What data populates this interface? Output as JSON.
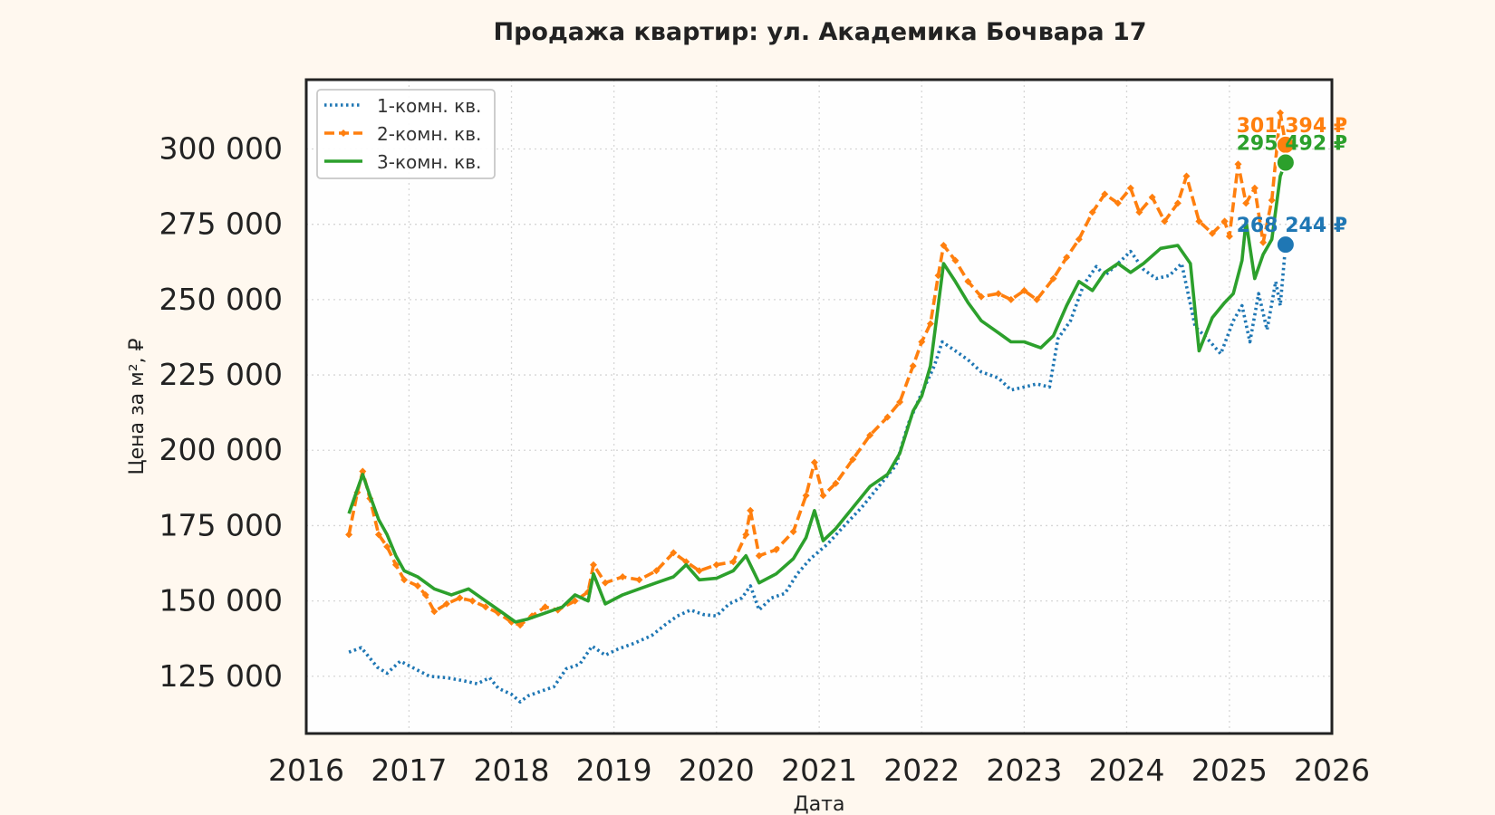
{
  "chart_data": {
    "type": "line",
    "title": "Продажа квартир: ул. Академика Бочвара 17",
    "xlabel": "Дата",
    "ylabel": "Цена за м², ₽",
    "xlim": [
      "2016-01-01",
      "2026-01-01"
    ],
    "ylim": [
      106000,
      323000
    ],
    "x_ticks": [
      "2016",
      "2017",
      "2018",
      "2019",
      "2020",
      "2021",
      "2022",
      "2023",
      "2024",
      "2025",
      "2026"
    ],
    "y_ticks": [
      125000,
      150000,
      175000,
      200000,
      225000,
      250000,
      275000,
      300000
    ],
    "y_tick_labels": [
      "125 000",
      "150 000",
      "175 000",
      "200 000",
      "225 000",
      "250 000",
      "275 000",
      "300 000"
    ],
    "grid": true,
    "legend_position": "top-left",
    "series": [
      {
        "name": "1-комн. кв.",
        "color": "#1f77b4",
        "style": "dotted",
        "last_value": 268244,
        "last_label": "268 244 ₽",
        "points": [
          [
            "2016-06-01",
            133000
          ],
          [
            "2016-07-15",
            134500
          ],
          [
            "2016-08-15",
            131000
          ],
          [
            "2016-09-10",
            128000
          ],
          [
            "2016-10-15",
            126000
          ],
          [
            "2016-12-01",
            130000
          ],
          [
            "2017-02-01",
            127000
          ],
          [
            "2017-03-15",
            125000
          ],
          [
            "2017-05-15",
            124500
          ],
          [
            "2017-07-15",
            123500
          ],
          [
            "2017-09-01",
            122500
          ],
          [
            "2017-10-15",
            124500
          ],
          [
            "2017-11-15",
            121000
          ],
          [
            "2018-01-01",
            119000
          ],
          [
            "2018-02-01",
            116500
          ],
          [
            "2018-03-01",
            118500
          ],
          [
            "2018-04-15",
            120000
          ],
          [
            "2018-06-01",
            121500
          ],
          [
            "2018-07-15",
            127500
          ],
          [
            "2018-09-01",
            129000
          ],
          [
            "2018-10-15",
            135000
          ],
          [
            "2018-12-01",
            132000
          ],
          [
            "2019-01-15",
            134000
          ],
          [
            "2019-03-15",
            136000
          ],
          [
            "2019-05-15",
            138500
          ],
          [
            "2019-07-01",
            142000
          ],
          [
            "2019-08-15",
            145000
          ],
          [
            "2019-10-01",
            147000
          ],
          [
            "2019-11-15",
            145500
          ],
          [
            "2020-01-01",
            145000
          ],
          [
            "2020-02-15",
            149000
          ],
          [
            "2020-04-01",
            151000
          ],
          [
            "2020-05-01",
            155000
          ],
          [
            "2020-06-01",
            147000
          ],
          [
            "2020-07-15",
            151000
          ],
          [
            "2020-09-01",
            152500
          ],
          [
            "2020-10-15",
            159000
          ],
          [
            "2020-12-01",
            164000
          ],
          [
            "2021-02-01",
            169000
          ],
          [
            "2021-04-01",
            175000
          ],
          [
            "2021-06-01",
            181000
          ],
          [
            "2021-08-01",
            188000
          ],
          [
            "2021-10-01",
            195000
          ],
          [
            "2021-11-15",
            209000
          ],
          [
            "2022-01-01",
            219000
          ],
          [
            "2022-02-15",
            228000
          ],
          [
            "2022-03-15",
            236000
          ],
          [
            "2022-05-01",
            233000
          ],
          [
            "2022-06-15",
            230000
          ],
          [
            "2022-08-01",
            226000
          ],
          [
            "2022-10-01",
            224000
          ],
          [
            "2022-11-15",
            220000
          ],
          [
            "2023-01-01",
            221000
          ],
          [
            "2023-02-15",
            222000
          ],
          [
            "2023-04-01",
            221000
          ],
          [
            "2023-05-01",
            237000
          ],
          [
            "2023-06-15",
            243000
          ],
          [
            "2023-08-01",
            255000
          ],
          [
            "2023-09-15",
            261000
          ],
          [
            "2023-10-15",
            258000
          ],
          [
            "2023-12-01",
            262000
          ],
          [
            "2024-01-15",
            266000
          ],
          [
            "2024-03-01",
            260000
          ],
          [
            "2024-04-15",
            257000
          ],
          [
            "2024-06-01",
            258000
          ],
          [
            "2024-07-15",
            262000
          ],
          [
            "2024-09-01",
            241000
          ],
          [
            "2024-10-15",
            237000
          ],
          [
            "2024-12-01",
            232000
          ],
          [
            "2025-01-15",
            243000
          ],
          [
            "2025-02-15",
            248000
          ],
          [
            "2025-03-15",
            236000
          ],
          [
            "2025-04-15",
            252000
          ],
          [
            "2025-05-15",
            240000
          ],
          [
            "2025-06-15",
            256000
          ],
          [
            "2025-07-01",
            248000
          ],
          [
            "2025-07-20",
            268244
          ]
        ]
      },
      {
        "name": "2-комн. кв.",
        "color": "#ff7f0e",
        "style": "dashed",
        "last_value": 301394,
        "last_label": "301 394 ₽",
        "points": [
          [
            "2016-06-01",
            172000
          ],
          [
            "2016-07-01",
            186000
          ],
          [
            "2016-07-20",
            193000
          ],
          [
            "2016-08-15",
            184000
          ],
          [
            "2016-09-15",
            172000
          ],
          [
            "2016-10-15",
            168000
          ],
          [
            "2016-11-15",
            162000
          ],
          [
            "2016-12-15",
            157000
          ],
          [
            "2017-02-01",
            155000
          ],
          [
            "2017-03-01",
            152000
          ],
          [
            "2017-04-01",
            146500
          ],
          [
            "2017-05-15",
            149000
          ],
          [
            "2017-07-01",
            151000
          ],
          [
            "2017-08-15",
            150000
          ],
          [
            "2017-10-01",
            148000
          ],
          [
            "2017-11-15",
            146000
          ],
          [
            "2018-01-01",
            143000
          ],
          [
            "2018-02-01",
            142000
          ],
          [
            "2018-03-15",
            145000
          ],
          [
            "2018-05-01",
            148000
          ],
          [
            "2018-06-15",
            147000
          ],
          [
            "2018-08-15",
            150000
          ],
          [
            "2018-10-01",
            153000
          ],
          [
            "2018-10-20",
            162000
          ],
          [
            "2018-12-01",
            156000
          ],
          [
            "2019-02-01",
            158000
          ],
          [
            "2019-04-01",
            157000
          ],
          [
            "2019-06-01",
            160000
          ],
          [
            "2019-08-01",
            166000
          ],
          [
            "2019-09-15",
            163000
          ],
          [
            "2019-11-01",
            160000
          ],
          [
            "2020-01-01",
            162000
          ],
          [
            "2020-03-01",
            163000
          ],
          [
            "2020-04-15",
            172000
          ],
          [
            "2020-05-01",
            180000
          ],
          [
            "2020-06-01",
            165000
          ],
          [
            "2020-08-01",
            167000
          ],
          [
            "2020-10-01",
            173000
          ],
          [
            "2020-11-15",
            185000
          ],
          [
            "2020-12-15",
            196000
          ],
          [
            "2021-01-15",
            185000
          ],
          [
            "2021-03-01",
            189000
          ],
          [
            "2021-05-01",
            197000
          ],
          [
            "2021-07-01",
            205000
          ],
          [
            "2021-09-01",
            211000
          ],
          [
            "2021-10-15",
            216000
          ],
          [
            "2021-12-01",
            228000
          ],
          [
            "2022-01-01",
            236000
          ],
          [
            "2022-02-01",
            242000
          ],
          [
            "2022-03-01",
            258000
          ],
          [
            "2022-03-20",
            268000
          ],
          [
            "2022-05-01",
            263000
          ],
          [
            "2022-06-15",
            256000
          ],
          [
            "2022-08-01",
            251000
          ],
          [
            "2022-10-01",
            252000
          ],
          [
            "2022-11-15",
            250000
          ],
          [
            "2023-01-01",
            253000
          ],
          [
            "2023-02-15",
            250000
          ],
          [
            "2023-04-15",
            257000
          ],
          [
            "2023-06-01",
            264000
          ],
          [
            "2023-07-15",
            270000
          ],
          [
            "2023-09-01",
            279000
          ],
          [
            "2023-10-15",
            285000
          ],
          [
            "2023-12-01",
            282000
          ],
          [
            "2024-01-15",
            287000
          ],
          [
            "2024-02-15",
            279000
          ],
          [
            "2024-04-01",
            284000
          ],
          [
            "2024-05-15",
            276000
          ],
          [
            "2024-07-01",
            282000
          ],
          [
            "2024-08-01",
            291000
          ],
          [
            "2024-09-15",
            276000
          ],
          [
            "2024-11-01",
            272000
          ],
          [
            "2024-12-15",
            276000
          ],
          [
            "2025-01-01",
            271000
          ],
          [
            "2025-02-01",
            295000
          ],
          [
            "2025-03-01",
            282000
          ],
          [
            "2025-04-01",
            287000
          ],
          [
            "2025-05-01",
            269000
          ],
          [
            "2025-06-01",
            283000
          ],
          [
            "2025-07-01",
            312000
          ],
          [
            "2025-07-20",
            301394
          ]
        ]
      },
      {
        "name": "3-комн. кв.",
        "color": "#2ca02c",
        "style": "solid",
        "last_value": 295492,
        "last_label": "295 492 ₽",
        "points": [
          [
            "2016-06-01",
            179000
          ],
          [
            "2016-07-01",
            187000
          ],
          [
            "2016-07-20",
            192000
          ],
          [
            "2016-08-15",
            185000
          ],
          [
            "2016-09-15",
            177000
          ],
          [
            "2016-10-15",
            172000
          ],
          [
            "2016-11-15",
            165000
          ],
          [
            "2016-12-15",
            160000
          ],
          [
            "2017-02-01",
            158000
          ],
          [
            "2017-04-01",
            154000
          ],
          [
            "2017-06-01",
            152000
          ],
          [
            "2017-08-01",
            154000
          ],
          [
            "2017-10-01",
            150000
          ],
          [
            "2017-12-01",
            146000
          ],
          [
            "2018-01-15",
            143000
          ],
          [
            "2018-03-01",
            144000
          ],
          [
            "2018-05-01",
            146000
          ],
          [
            "2018-07-01",
            148000
          ],
          [
            "2018-08-15",
            152000
          ],
          [
            "2018-10-01",
            150000
          ],
          [
            "2018-10-20",
            159000
          ],
          [
            "2018-12-01",
            149000
          ],
          [
            "2019-02-01",
            152000
          ],
          [
            "2019-04-01",
            154000
          ],
          [
            "2019-06-01",
            156000
          ],
          [
            "2019-08-01",
            158000
          ],
          [
            "2019-09-15",
            162000
          ],
          [
            "2019-11-01",
            157000
          ],
          [
            "2020-01-01",
            157500
          ],
          [
            "2020-03-01",
            160000
          ],
          [
            "2020-04-15",
            165000
          ],
          [
            "2020-06-01",
            156000
          ],
          [
            "2020-08-01",
            159000
          ],
          [
            "2020-10-01",
            164000
          ],
          [
            "2020-11-15",
            171000
          ],
          [
            "2020-12-15",
            180000
          ],
          [
            "2021-01-15",
            170000
          ],
          [
            "2021-03-01",
            174000
          ],
          [
            "2021-05-01",
            181000
          ],
          [
            "2021-07-01",
            188000
          ],
          [
            "2021-09-01",
            192000
          ],
          [
            "2021-10-15",
            199000
          ],
          [
            "2021-12-01",
            213000
          ],
          [
            "2022-01-01",
            218000
          ],
          [
            "2022-02-01",
            228000
          ],
          [
            "2022-03-01",
            248000
          ],
          [
            "2022-03-20",
            262000
          ],
          [
            "2022-05-01",
            256000
          ],
          [
            "2022-06-15",
            249000
          ],
          [
            "2022-08-01",
            243000
          ],
          [
            "2022-10-01",
            239000
          ],
          [
            "2022-11-15",
            236000
          ],
          [
            "2023-01-01",
            236000
          ],
          [
            "2023-03-01",
            234000
          ],
          [
            "2023-04-15",
            238000
          ],
          [
            "2023-06-01",
            248000
          ],
          [
            "2023-07-15",
            256000
          ],
          [
            "2023-09-01",
            253000
          ],
          [
            "2023-10-15",
            259000
          ],
          [
            "2023-12-01",
            262000
          ],
          [
            "2024-01-15",
            259000
          ],
          [
            "2024-03-01",
            262000
          ],
          [
            "2024-05-01",
            267000
          ],
          [
            "2024-07-01",
            268000
          ],
          [
            "2024-08-15",
            262000
          ],
          [
            "2024-09-15",
            233000
          ],
          [
            "2024-11-01",
            244000
          ],
          [
            "2024-12-15",
            249000
          ],
          [
            "2025-01-15",
            252000
          ],
          [
            "2025-02-15",
            263000
          ],
          [
            "2025-03-01",
            276000
          ],
          [
            "2025-04-01",
            257000
          ],
          [
            "2025-05-01",
            265000
          ],
          [
            "2025-06-01",
            270000
          ],
          [
            "2025-07-01",
            291000
          ],
          [
            "2025-07-20",
            295492
          ]
        ]
      }
    ]
  }
}
